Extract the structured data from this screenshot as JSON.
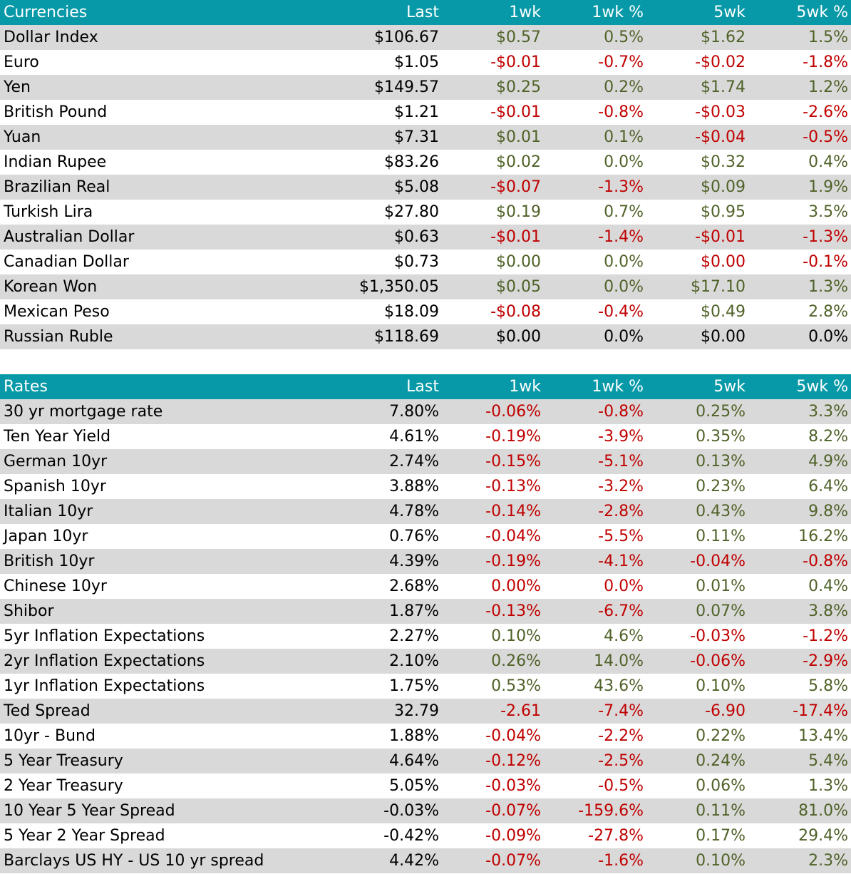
{
  "columns": [
    "Last",
    "1wk",
    "1wk %",
    "5wk",
    "5wk %"
  ],
  "colors": {
    "header_bg": "#0899a8",
    "header_text": "#ffffff",
    "shade": "#d9d9d9",
    "positive": "#4f6228",
    "negative": "#c00000",
    "neutral": "#000000"
  },
  "tables": [
    {
      "title": "Currencies",
      "rows": [
        {
          "name": "Dollar Index",
          "cells": [
            [
              "$106.67",
              "neu"
            ],
            [
              "$0.57",
              "pos"
            ],
            [
              "0.5%",
              "pos"
            ],
            [
              "$1.62",
              "pos"
            ],
            [
              "1.5%",
              "pos"
            ]
          ]
        },
        {
          "name": "Euro",
          "cells": [
            [
              "$1.05",
              "neu"
            ],
            [
              "-$0.01",
              "neg"
            ],
            [
              "-0.7%",
              "neg"
            ],
            [
              "-$0.02",
              "neg"
            ],
            [
              "-1.8%",
              "neg"
            ]
          ]
        },
        {
          "name": "Yen",
          "cells": [
            [
              "$149.57",
              "neu"
            ],
            [
              "$0.25",
              "pos"
            ],
            [
              "0.2%",
              "pos"
            ],
            [
              "$1.74",
              "pos"
            ],
            [
              "1.2%",
              "pos"
            ]
          ]
        },
        {
          "name": "British Pound",
          "cells": [
            [
              "$1.21",
              "neu"
            ],
            [
              "-$0.01",
              "neg"
            ],
            [
              "-0.8%",
              "neg"
            ],
            [
              "-$0.03",
              "neg"
            ],
            [
              "-2.6%",
              "neg"
            ]
          ]
        },
        {
          "name": "Yuan",
          "cells": [
            [
              "$7.31",
              "neu"
            ],
            [
              "$0.01",
              "pos"
            ],
            [
              "0.1%",
              "pos"
            ],
            [
              "-$0.04",
              "neg"
            ],
            [
              "-0.5%",
              "neg"
            ]
          ]
        },
        {
          "name": "Indian Rupee",
          "cells": [
            [
              "$83.26",
              "neu"
            ],
            [
              "$0.02",
              "pos"
            ],
            [
              "0.0%",
              "pos"
            ],
            [
              "$0.32",
              "pos"
            ],
            [
              "0.4%",
              "pos"
            ]
          ]
        },
        {
          "name": "Brazilian Real",
          "cells": [
            [
              "$5.08",
              "neu"
            ],
            [
              "-$0.07",
              "neg"
            ],
            [
              "-1.3%",
              "neg"
            ],
            [
              "$0.09",
              "pos"
            ],
            [
              "1.9%",
              "pos"
            ]
          ]
        },
        {
          "name": "Turkish Lira",
          "cells": [
            [
              "$27.80",
              "neu"
            ],
            [
              "$0.19",
              "pos"
            ],
            [
              "0.7%",
              "pos"
            ],
            [
              "$0.95",
              "pos"
            ],
            [
              "3.5%",
              "pos"
            ]
          ]
        },
        {
          "name": "Australian Dollar",
          "cells": [
            [
              "$0.63",
              "neu"
            ],
            [
              "-$0.01",
              "neg"
            ],
            [
              "-1.4%",
              "neg"
            ],
            [
              "-$0.01",
              "neg"
            ],
            [
              "-1.3%",
              "neg"
            ]
          ]
        },
        {
          "name": "Canadian Dollar",
          "cells": [
            [
              "$0.73",
              "neu"
            ],
            [
              "$0.00",
              "pos"
            ],
            [
              "0.0%",
              "pos"
            ],
            [
              "$0.00",
              "neg"
            ],
            [
              "-0.1%",
              "neg"
            ]
          ]
        },
        {
          "name": "Korean Won",
          "cells": [
            [
              "$1,350.05",
              "neu"
            ],
            [
              "$0.05",
              "pos"
            ],
            [
              "0.0%",
              "pos"
            ],
            [
              "$17.10",
              "pos"
            ],
            [
              "1.3%",
              "pos"
            ]
          ]
        },
        {
          "name": "Mexican Peso",
          "cells": [
            [
              "$18.09",
              "neu"
            ],
            [
              "-$0.08",
              "neg"
            ],
            [
              "-0.4%",
              "neg"
            ],
            [
              "$0.49",
              "pos"
            ],
            [
              "2.8%",
              "pos"
            ]
          ]
        },
        {
          "name": "Russian Ruble",
          "cells": [
            [
              "$118.69",
              "neu"
            ],
            [
              "$0.00",
              "neu"
            ],
            [
              "0.0%",
              "neu"
            ],
            [
              "$0.00",
              "neu"
            ],
            [
              "0.0%",
              "neu"
            ]
          ]
        }
      ]
    },
    {
      "title": "Rates",
      "rows": [
        {
          "name": "30 yr mortgage rate",
          "cells": [
            [
              "7.80%",
              "neu"
            ],
            [
              "-0.06%",
              "neg"
            ],
            [
              "-0.8%",
              "neg"
            ],
            [
              "0.25%",
              "pos"
            ],
            [
              "3.3%",
              "pos"
            ]
          ]
        },
        {
          "name": "Ten Year Yield",
          "cells": [
            [
              "4.61%",
              "neu"
            ],
            [
              "-0.19%",
              "neg"
            ],
            [
              "-3.9%",
              "neg"
            ],
            [
              "0.35%",
              "pos"
            ],
            [
              "8.2%",
              "pos"
            ]
          ]
        },
        {
          "name": "German 10yr",
          "cells": [
            [
              "2.74%",
              "neu"
            ],
            [
              "-0.15%",
              "neg"
            ],
            [
              "-5.1%",
              "neg"
            ],
            [
              "0.13%",
              "pos"
            ],
            [
              "4.9%",
              "pos"
            ]
          ]
        },
        {
          "name": "Spanish 10yr",
          "cells": [
            [
              "3.88%",
              "neu"
            ],
            [
              "-0.13%",
              "neg"
            ],
            [
              "-3.2%",
              "neg"
            ],
            [
              "0.23%",
              "pos"
            ],
            [
              "6.4%",
              "pos"
            ]
          ]
        },
        {
          "name": "Italian 10yr",
          "cells": [
            [
              "4.78%",
              "neu"
            ],
            [
              "-0.14%",
              "neg"
            ],
            [
              "-2.8%",
              "neg"
            ],
            [
              "0.43%",
              "pos"
            ],
            [
              "9.8%",
              "pos"
            ]
          ]
        },
        {
          "name": "Japan 10yr",
          "cells": [
            [
              "0.76%",
              "neu"
            ],
            [
              "-0.04%",
              "neg"
            ],
            [
              "-5.5%",
              "neg"
            ],
            [
              "0.11%",
              "pos"
            ],
            [
              "16.2%",
              "pos"
            ]
          ]
        },
        {
          "name": "British 10yr",
          "cells": [
            [
              "4.39%",
              "neu"
            ],
            [
              "-0.19%",
              "neg"
            ],
            [
              "-4.1%",
              "neg"
            ],
            [
              "-0.04%",
              "neg"
            ],
            [
              "-0.8%",
              "neg"
            ]
          ]
        },
        {
          "name": "Chinese 10yr",
          "cells": [
            [
              "2.68%",
              "neu"
            ],
            [
              "0.00%",
              "neg"
            ],
            [
              "0.0%",
              "neg"
            ],
            [
              "0.01%",
              "pos"
            ],
            [
              "0.4%",
              "pos"
            ]
          ]
        },
        {
          "name": "Shibor",
          "cells": [
            [
              "1.87%",
              "neu"
            ],
            [
              "-0.13%",
              "neg"
            ],
            [
              "-6.7%",
              "neg"
            ],
            [
              "0.07%",
              "pos"
            ],
            [
              "3.8%",
              "pos"
            ]
          ]
        },
        {
          "name": "5yr Inflation Expectations",
          "cells": [
            [
              "2.27%",
              "neu"
            ],
            [
              "0.10%",
              "pos"
            ],
            [
              "4.6%",
              "pos"
            ],
            [
              "-0.03%",
              "neg"
            ],
            [
              "-1.2%",
              "neg"
            ]
          ]
        },
        {
          "name": "2yr Inflation Expectations",
          "cells": [
            [
              "2.10%",
              "neu"
            ],
            [
              "0.26%",
              "pos"
            ],
            [
              "14.0%",
              "pos"
            ],
            [
              "-0.06%",
              "neg"
            ],
            [
              "-2.9%",
              "neg"
            ]
          ]
        },
        {
          "name": "1yr Inflation Expectations",
          "cells": [
            [
              "1.75%",
              "neu"
            ],
            [
              "0.53%",
              "pos"
            ],
            [
              "43.6%",
              "pos"
            ],
            [
              "0.10%",
              "pos"
            ],
            [
              "5.8%",
              "pos"
            ]
          ]
        },
        {
          "name": "Ted Spread",
          "cells": [
            [
              "32.79",
              "neu"
            ],
            [
              "-2.61",
              "neg"
            ],
            [
              "-7.4%",
              "neg"
            ],
            [
              "-6.90",
              "neg"
            ],
            [
              "-17.4%",
              "neg"
            ]
          ]
        },
        {
          "name": "10yr - Bund",
          "cells": [
            [
              "1.88%",
              "neu"
            ],
            [
              "-0.04%",
              "neg"
            ],
            [
              "-2.2%",
              "neg"
            ],
            [
              "0.22%",
              "pos"
            ],
            [
              "13.4%",
              "pos"
            ]
          ]
        },
        {
          "name": "5 Year Treasury",
          "cells": [
            [
              "4.64%",
              "neu"
            ],
            [
              "-0.12%",
              "neg"
            ],
            [
              "-2.5%",
              "neg"
            ],
            [
              "0.24%",
              "pos"
            ],
            [
              "5.4%",
              "pos"
            ]
          ]
        },
        {
          "name": "2 Year Treasury",
          "cells": [
            [
              "5.05%",
              "neu"
            ],
            [
              "-0.03%",
              "neg"
            ],
            [
              "-0.5%",
              "neg"
            ],
            [
              "0.06%",
              "pos"
            ],
            [
              "1.3%",
              "pos"
            ]
          ]
        },
        {
          "name": "10 Year 5 Year Spread",
          "cells": [
            [
              "-0.03%",
              "neu"
            ],
            [
              "-0.07%",
              "neg"
            ],
            [
              "-159.6%",
              "neg"
            ],
            [
              "0.11%",
              "pos"
            ],
            [
              "81.0%",
              "pos"
            ]
          ]
        },
        {
          "name": "5 Year 2 Year Spread",
          "cells": [
            [
              "-0.42%",
              "neu"
            ],
            [
              "-0.09%",
              "neg"
            ],
            [
              "-27.8%",
              "neg"
            ],
            [
              "0.17%",
              "pos"
            ],
            [
              "29.4%",
              "pos"
            ]
          ]
        },
        {
          "name": "Barclays US HY - US 10 yr spread",
          "cells": [
            [
              "4.42%",
              "neu"
            ],
            [
              "-0.07%",
              "neg"
            ],
            [
              "-1.6%",
              "neg"
            ],
            [
              "0.10%",
              "pos"
            ],
            [
              "2.3%",
              "pos"
            ]
          ]
        }
      ]
    }
  ]
}
